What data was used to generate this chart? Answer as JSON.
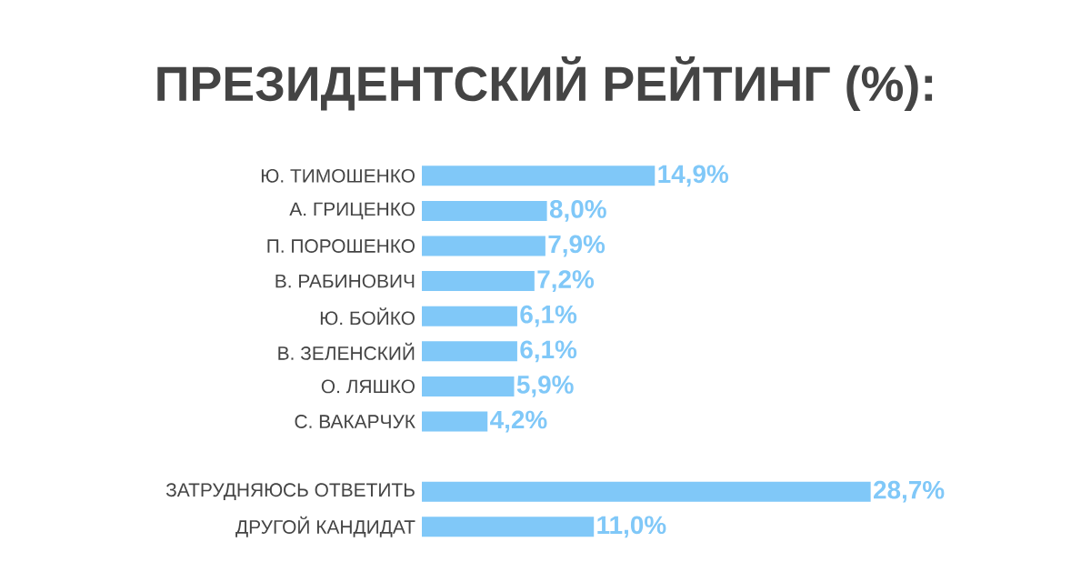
{
  "chart_data": {
    "type": "bar",
    "orientation": "horizontal",
    "title": "ПРЕЗИДЕНТСКИЙ РЕЙТИНГ (%):",
    "categories": [
      "Ю. ТИМОШЕНКО",
      "А. ГРИЦЕНКО",
      "П. ПОРОШЕНКО",
      "В. РАБИНОВИЧ",
      "Ю. БОЙКО",
      "В. ЗЕЛЕНСКИЙ",
      "О. ЛЯШКО",
      "С. ВАКАРЧУК",
      null,
      "ЗАТРУДНЯЮСЬ ОТВЕТИТЬ",
      "ДРУГОЙ КАНДИДАТ"
    ],
    "values": [
      14.9,
      8.0,
      7.9,
      7.2,
      6.1,
      6.1,
      5.9,
      4.2,
      null,
      28.7,
      11.0
    ],
    "value_labels": [
      "14,9%",
      "8,0%",
      "7,9%",
      "7,2%",
      "6,1%",
      "6,1%",
      "5,9%",
      "4,2%",
      null,
      "28,7%",
      "11,0%"
    ],
    "color": "#80c8f8"
  }
}
